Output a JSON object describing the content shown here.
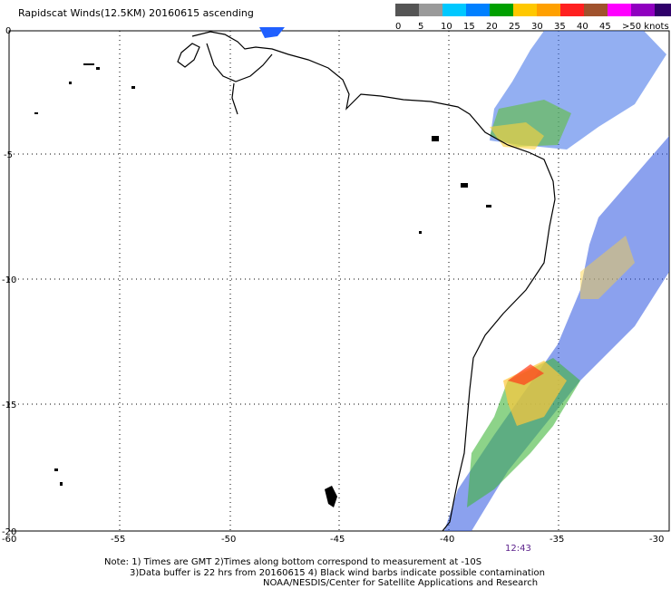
{
  "title": "Rapidscat Winds(12.5KM) 20160615 ascending",
  "legend": {
    "colors": [
      "#555555",
      "#9a9a9a",
      "#00c8ff",
      "#0080ff",
      "#00a000",
      "#ffc800",
      "#ffa000",
      "#ff2020",
      "#a0522d",
      "#ff00ff",
      "#9000c0",
      "#30006a"
    ],
    "labels": [
      "0",
      "5",
      "10",
      "15",
      "20",
      "25",
      "30",
      "35",
      "40",
      "45",
      ">50 knots"
    ]
  },
  "axes": {
    "x_ticks": [
      "-60",
      "-55",
      "-50",
      "-45",
      "-40",
      "-35",
      "-30"
    ],
    "y_ticks": [
      "0",
      "-5",
      "-10",
      "-15",
      "-20"
    ]
  },
  "time_label": "12:43",
  "notes": [
    "Note: 1) Times are GMT 2)Times along bottom correspond to measurement at -10S",
    "3)Data buffer is 22 hrs from 20160615 4) Black wind barbs indicate possible contamination",
    "NOAA/NESDIS/Center for Satellite Applications and Research"
  ]
}
